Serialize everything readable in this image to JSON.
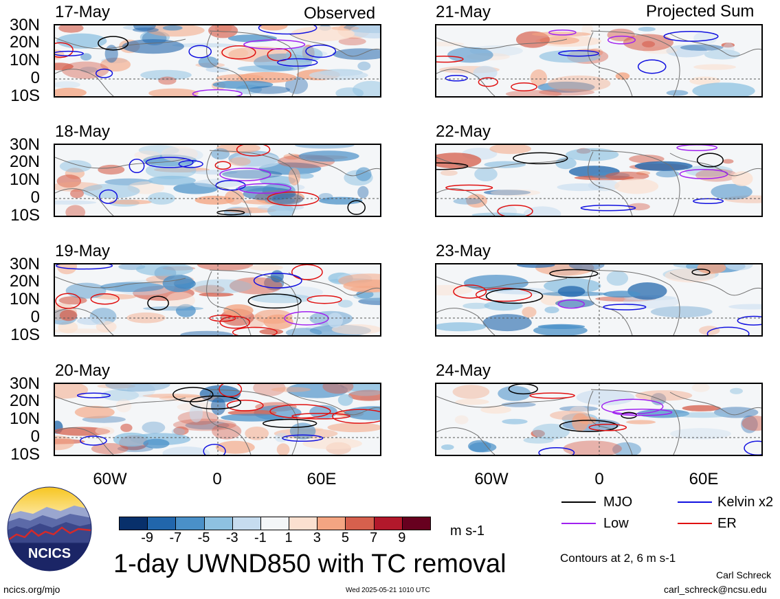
{
  "headers": {
    "observed": "Observed",
    "projected": "Projected Sum"
  },
  "left_panels": [
    {
      "date": "17-May"
    },
    {
      "date": "18-May"
    },
    {
      "date": "19-May"
    },
    {
      "date": "20-May"
    }
  ],
  "right_panels": [
    {
      "date": "21-May"
    },
    {
      "date": "22-May"
    },
    {
      "date": "23-May"
    },
    {
      "date": "24-May"
    }
  ],
  "lat_labels": [
    "30N",
    "20N",
    "10N",
    "0",
    "10S"
  ],
  "lon_labels": [
    "60W",
    "0",
    "60E"
  ],
  "colorbar": {
    "colors": [
      "#08306b",
      "#2166ac",
      "#4a90c8",
      "#8ec1e1",
      "#c6dcef",
      "#f4f6f8",
      "#fbe0d0",
      "#f4a582",
      "#d6604d",
      "#b2182b",
      "#67001f"
    ],
    "labels": [
      "-9",
      "-7",
      "-5",
      "-3",
      "-1",
      "1",
      "3",
      "5",
      "7",
      "9"
    ],
    "units": "m s-1"
  },
  "main_title": "1-day UWND850 with TC removal",
  "legend": {
    "mjo": {
      "label": "MJO",
      "color": "#000000"
    },
    "kelvin": {
      "label": "Kelvin x2",
      "color": "#1010e0"
    },
    "low": {
      "label": "Low",
      "color": "#a020f0"
    },
    "er": {
      "label": "ER",
      "color": "#e01010"
    }
  },
  "contours_note": "Contours at 2, 6 m s-1",
  "logo_text": "NCICS",
  "website": "ncics.org/mjo",
  "timestamp": "Wed 2025-05-21 1010 UTC",
  "author": "Carl Schreck",
  "email": "carl_schreck@ncsu.edu"
}
